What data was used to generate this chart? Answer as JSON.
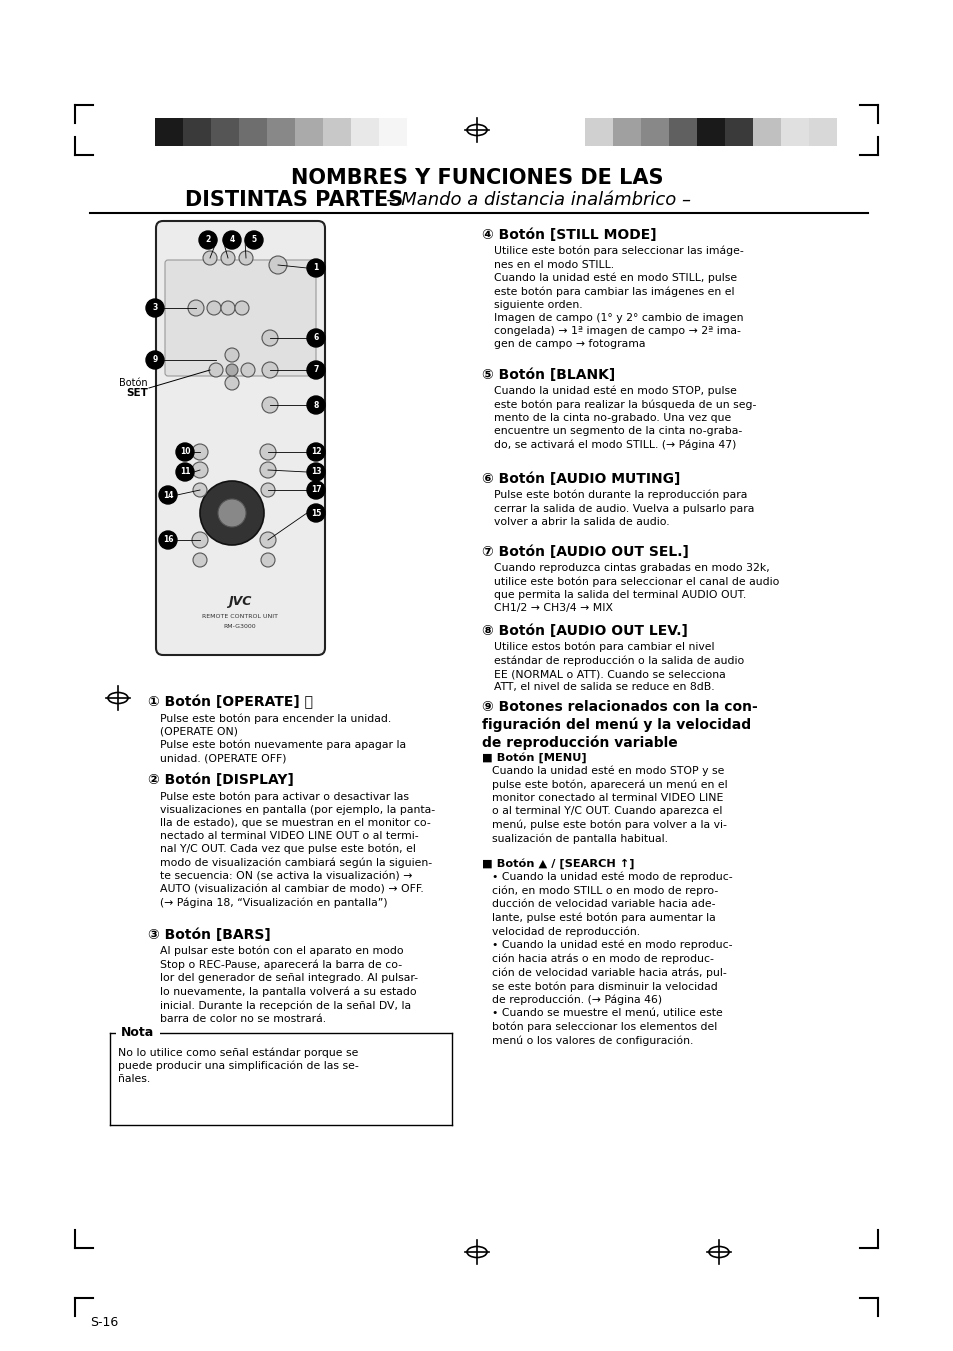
{
  "bg_color": "#ffffff",
  "header_bar_colors_left": [
    "#1a1a1a",
    "#3a3a3a",
    "#555555",
    "#6e6e6e",
    "#888888",
    "#aaaaaa",
    "#c8c8c8",
    "#e8e8e8",
    "#f5f5f5"
  ],
  "header_bar_colors_right": [
    "#d0d0d0",
    "#a0a0a0",
    "#888888",
    "#606060",
    "#1a1a1a",
    "#3a3a3a",
    "#c0c0c0",
    "#e0e0e0",
    "#d8d8d8"
  ],
  "title_line1": "NOMBRES Y FUNCIONES DE LAS",
  "title_line2_bold": "DISTINTAS PARTES",
  "title_line2_normal": "  – Mando a distancia inalámbrico –",
  "section1_title": "① Botón [OPERATE] ⏻",
  "section1_text": "Pulse este botón para encender la unidad.\n(OPERATE ON)\nPulse este botón nuevamente para apagar la\nunidad. (OPERATE OFF)",
  "section2_title": "② Botón [DISPLAY]",
  "section2_text": "Pulse este botón para activar o desactivar las\nvisualizaciones en pantalla (por ejemplo, la panta-\nlla de estado), que se muestran en el monitor co-\nnectado al terminal VIDEO LINE OUT o al termi-\nnal Y/C OUT. Cada vez que pulse este botón, el\nmodo de visualización cambiará según la siguien-\nte secuencia: ON (se activa la visualización) →\nAUTO (visualización al cambiar de modo) → OFF.\n(→ Página 18, “Visualización en pantalla”)",
  "section3_title": "③ Botón [BARS]",
  "section3_text": "Al pulsar este botón con el aparato en modo\nStop o REC-Pause, aparecerá la barra de co-\nlor del generador de señal integrado. Al pulsar-\nlo nuevamente, la pantalla volverá a su estado\ninicial. Durante la recepción de la señal DV, la\nbarra de color no se mostrará.",
  "nota_title": "Nota",
  "nota_text": "No lo utilice como señal estándar porque se\npuede producir una simplificación de las se-\nñales.",
  "section4_title": "④ Botón [STILL MODE]",
  "section4_text": "Utilice este botón para seleccionar las imáge-\nnes en el modo STILL.\nCuando la unidad esté en modo STILL, pulse\neste botón para cambiar las imágenes en el\nsiguiente orden.\nImagen de campo (1° y 2° cambio de imagen\ncongelada) → 1ª imagen de campo → 2ª ima-\ngen de campo → fotograma",
  "section5_title": "⑤ Botón [BLANK]",
  "section5_text": "Cuando la unidad esté en modo STOP, pulse\neste botón para realizar la búsqueda de un seg-\nmento de la cinta no-grabado. Una vez que\nencuentre un segmento de la cinta no-graba-\ndo, se activará el modo STILL. (→ Página 47)",
  "section6_title": "⑥ Botón [AUDIO MUTING]",
  "section6_text": "Pulse este botón durante la reproducción para\ncerrar la salida de audio. Vuelva a pulsarlo para\nvolver a abrir la salida de audio.",
  "section7_title": "⑦ Botón [AUDIO OUT SEL.]",
  "section7_text": "Cuando reproduzca cintas grabadas en modo 32k,\nutilice este botón para seleccionar el canal de audio\nque permita la salida del terminal AUDIO OUT.\nCH1/2 → CH3/4 → MIX",
  "section8_title": "⑧ Botón [AUDIO OUT LEV.]",
  "section8_text": "Utilice estos botón para cambiar el nivel\nestándar de reproducción o la salida de audio\nEE (NORMAL o ATT). Cuando se selecciona\nATT, el nivel de salida se reduce en 8dB.",
  "section9_title": "⑨ Botones relacionados con la con-\nfiguración del menú y la velocidad\nde reproducción variable",
  "section9_sub1": "■ Botón [MENU]",
  "section9_sub1_text": "Cuando la unidad esté en modo STOP y se\npulse este botón, aparecerá un menú en el\nmonitor conectado al terminal VIDEO LINE\no al terminal Y/C OUT. Cuando aparezca el\nmenú, pulse este botón para volver a la vi-\nsualización de pantalla habitual.",
  "section9_sub2": "■ Botón ▲ / [SEARCH ↑]",
  "section9_sub2_text": "• Cuando la unidad esté modo de reproduc-\nción, en modo STILL o en modo de repro-\nducción de velocidad variable hacia ade-\nlante, pulse esté botón para aumentar la\nvelocidad de reproducción.\n• Cuando la unidad esté en modo reproduc-\nción hacia atrás o en modo de reproduc-\nción de velocidad variable hacia atrás, pul-\nse este botón para disminuir la velocidad\nde reproducción. (→ Página 46)\n• Cuando se muestre el menú, utilice este\nbotón para seleccionar los elementos del\nmenú o los valores de configuración.",
  "footer_text": "S-16"
}
